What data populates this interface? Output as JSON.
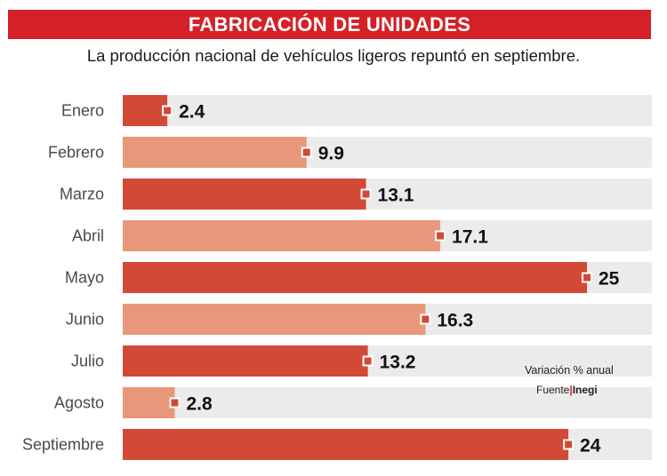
{
  "header": {
    "title": "FABRICACIÓN DE UNIDADES",
    "subtitle": "La producción nacional de vehículos ligeros repuntó en septiembre."
  },
  "chart_data": {
    "type": "bar",
    "orientation": "horizontal",
    "title": "FABRICACIÓN DE UNIDADES",
    "subtitle": "La producción nacional de vehículos ligeros repuntó en septiembre.",
    "categories": [
      "Enero",
      "Febrero",
      "Marzo",
      "Abril",
      "Mayo",
      "Junio",
      "Julio",
      "Agosto",
      "Septiembre"
    ],
    "values": [
      2.4,
      9.9,
      13.1,
      17.1,
      25,
      16.3,
      13.2,
      2.8,
      24
    ],
    "value_labels": [
      "2.4",
      "9.9",
      "13.1",
      "17.1",
      "25",
      "16.3",
      "13.2",
      "2.8",
      "24"
    ],
    "xlim": [
      0,
      32
    ],
    "unit_note": "Variación % anual",
    "colors": {
      "dark_bar": "#d24a36",
      "light_bar": "#e8977a",
      "track": "#ebebeb",
      "marker": "#d24a36"
    }
  },
  "footer": {
    "note": "Variación % anual",
    "source_label": "Fuente",
    "source_name": "Inegi"
  }
}
